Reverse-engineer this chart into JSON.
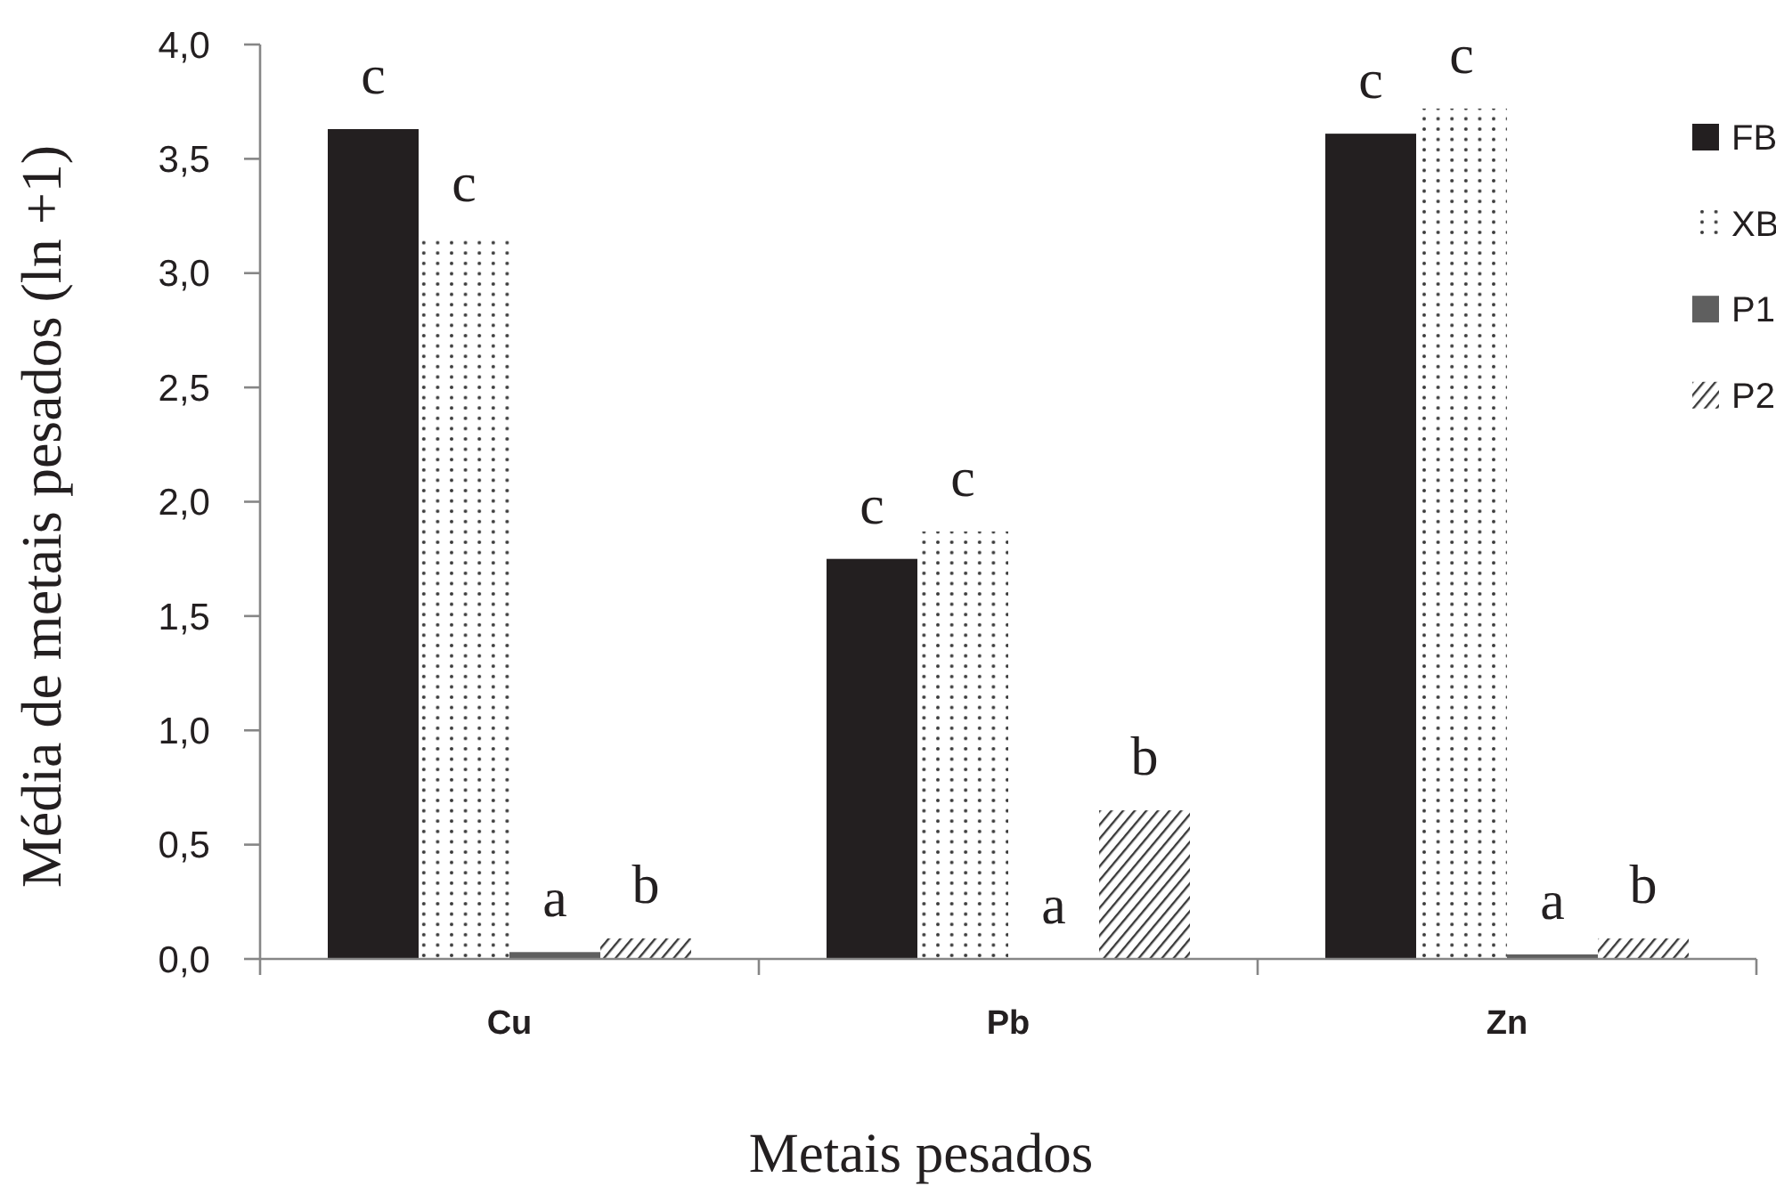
{
  "chart_data": {
    "type": "bar",
    "xlabel": "Metais pesados",
    "ylabel": "Média de metais pesados (ln +1)",
    "categories": [
      "Cu",
      "Pb",
      "Zn"
    ],
    "series": [
      {
        "name": "FB",
        "color": "#231f20",
        "values": [
          3.63,
          1.75,
          3.61
        ],
        "value_labels": [
          "c",
          "c",
          "c"
        ]
      },
      {
        "name": "XB",
        "color": "#3a3a3a",
        "values": [
          3.16,
          1.87,
          3.72
        ],
        "value_labels": [
          "c",
          "c",
          "c"
        ]
      },
      {
        "name": "P1",
        "color": "#5f5f5f",
        "values": [
          0.03,
          0,
          0.02
        ],
        "value_labels": [
          "a",
          "a",
          "a"
        ]
      },
      {
        "name": "P2",
        "color": "#3a3a3a",
        "values": [
          0.09,
          0.65,
          0.09
        ],
        "value_labels": [
          "b",
          "b",
          "b"
        ]
      }
    ],
    "ylim": [
      0,
      4
    ],
    "yticks": [
      {
        "value": 0,
        "label": "0,0"
      },
      {
        "value": 0.5,
        "label": "0,5"
      },
      {
        "value": 1,
        "label": "1,0"
      },
      {
        "value": 1.5,
        "label": "1,5"
      },
      {
        "value": 2,
        "label": "2,0"
      },
      {
        "value": 2.5,
        "label": "2,5"
      },
      {
        "value": 3,
        "label": "3,0"
      },
      {
        "value": 3.5,
        "label": "3,5"
      },
      {
        "value": 4,
        "label": "4,0"
      }
    ],
    "legend": "right"
  }
}
